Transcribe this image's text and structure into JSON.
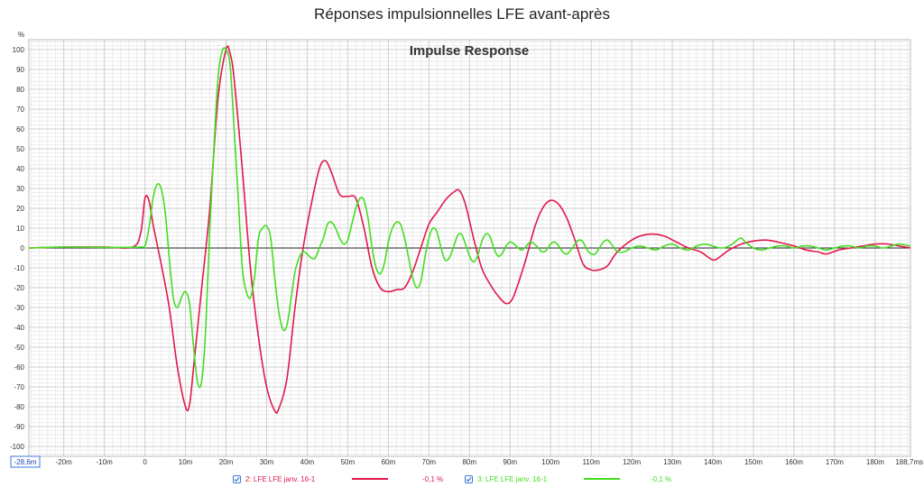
{
  "page": {
    "title": "Réponses impulsionnelles LFE avant-après"
  },
  "chart_data": {
    "type": "line",
    "title": "Impulse Response",
    "ylabel": "%",
    "xlim": [
      -28.6,
      188.7
    ],
    "ylim": [
      -105,
      105
    ],
    "grid": true,
    "x_ticks": [
      {
        "v": -28.6,
        "label": "-28,6m"
      },
      {
        "v": -20,
        "label": "-20m"
      },
      {
        "v": -10,
        "label": "-10m"
      },
      {
        "v": 0,
        "label": "0"
      },
      {
        "v": 10,
        "label": "10m"
      },
      {
        "v": 20,
        "label": "20m"
      },
      {
        "v": 30,
        "label": "30m"
      },
      {
        "v": 40,
        "label": "40m"
      },
      {
        "v": 50,
        "label": "50m"
      },
      {
        "v": 60,
        "label": "60m"
      },
      {
        "v": 70,
        "label": "70m"
      },
      {
        "v": 80,
        "label": "80m"
      },
      {
        "v": 90,
        "label": "90m"
      },
      {
        "v": 100,
        "label": "100m"
      },
      {
        "v": 110,
        "label": "110m"
      },
      {
        "v": 120,
        "label": "120m"
      },
      {
        "v": 130,
        "label": "130m"
      },
      {
        "v": 140,
        "label": "140m"
      },
      {
        "v": 150,
        "label": "150m"
      },
      {
        "v": 160,
        "label": "160m"
      },
      {
        "v": 170,
        "label": "170m"
      },
      {
        "v": 180,
        "label": "180m"
      },
      {
        "v": 188.7,
        "label": "188,7ms"
      }
    ],
    "y_ticks": [
      100,
      90,
      80,
      70,
      60,
      50,
      40,
      30,
      20,
      10,
      0,
      -10,
      -20,
      -30,
      -40,
      -50,
      -60,
      -70,
      -80,
      -90,
      -100
    ],
    "series": [
      {
        "name": "2: LFE LFE janv. 16-1",
        "value_label": "-0,1 %",
        "color": "#e0194b",
        "points": [
          [
            -28.6,
            0
          ],
          [
            -20,
            0.5
          ],
          [
            -10,
            0.5
          ],
          [
            -3,
            0.5
          ],
          [
            -1,
            8
          ],
          [
            0,
            25
          ],
          [
            1,
            24
          ],
          [
            2,
            12
          ],
          [
            4,
            -8
          ],
          [
            6,
            -30
          ],
          [
            8,
            -60
          ],
          [
            10,
            -80
          ],
          [
            11,
            -79
          ],
          [
            12,
            -60
          ],
          [
            14,
            -20
          ],
          [
            16,
            20
          ],
          [
            18,
            75
          ],
          [
            20,
            100
          ],
          [
            21,
            98
          ],
          [
            22,
            85
          ],
          [
            24,
            40
          ],
          [
            26,
            -10
          ],
          [
            28,
            -45
          ],
          [
            30,
            -70
          ],
          [
            32,
            -82
          ],
          [
            33,
            -81
          ],
          [
            35,
            -66
          ],
          [
            37,
            -30
          ],
          [
            39,
            0
          ],
          [
            41,
            22
          ],
          [
            43,
            40
          ],
          [
            44.5,
            44
          ],
          [
            46,
            38
          ],
          [
            48,
            27
          ],
          [
            50,
            26
          ],
          [
            52,
            25
          ],
          [
            54,
            10
          ],
          [
            56,
            -10
          ],
          [
            58,
            -20
          ],
          [
            60,
            -22
          ],
          [
            62,
            -21
          ],
          [
            64,
            -20
          ],
          [
            66,
            -12
          ],
          [
            68,
            0
          ],
          [
            70,
            12
          ],
          [
            72,
            18
          ],
          [
            74,
            24
          ],
          [
            76,
            28
          ],
          [
            77.5,
            29
          ],
          [
            79,
            22
          ],
          [
            81,
            5
          ],
          [
            83,
            -10
          ],
          [
            85,
            -18
          ],
          [
            87,
            -24
          ],
          [
            89,
            -28
          ],
          [
            90.5,
            -26
          ],
          [
            92,
            -18
          ],
          [
            94,
            -5
          ],
          [
            96,
            10
          ],
          [
            98,
            20
          ],
          [
            100,
            24
          ],
          [
            102,
            22
          ],
          [
            104,
            15
          ],
          [
            106,
            4
          ],
          [
            108,
            -8
          ],
          [
            110,
            -11
          ],
          [
            112,
            -11
          ],
          [
            114,
            -9
          ],
          [
            116,
            -3
          ],
          [
            118,
            1
          ],
          [
            120,
            4
          ],
          [
            122,
            6
          ],
          [
            125,
            7
          ],
          [
            128,
            6
          ],
          [
            131,
            3
          ],
          [
            134,
            0
          ],
          [
            137,
            -2
          ],
          [
            140,
            -6
          ],
          [
            142,
            -4
          ],
          [
            144,
            -1
          ],
          [
            147,
            2
          ],
          [
            150,
            3.5
          ],
          [
            153,
            4
          ],
          [
            156,
            3
          ],
          [
            160,
            1
          ],
          [
            163,
            -1
          ],
          [
            166,
            -2
          ],
          [
            168,
            -3
          ],
          [
            171,
            -1
          ],
          [
            174,
            0
          ],
          [
            177,
            1
          ],
          [
            180,
            2
          ],
          [
            183,
            2
          ],
          [
            186,
            1
          ],
          [
            188.7,
            0
          ]
        ]
      },
      {
        "name": "3: LFE LFE janv. 16-1",
        "value_label": "-0,1 %",
        "color": "#44dd22",
        "points": [
          [
            -28.6,
            0
          ],
          [
            -20,
            0.5
          ],
          [
            -10,
            0.3
          ],
          [
            -1,
            0.5
          ],
          [
            0,
            1
          ],
          [
            1,
            10
          ],
          [
            2,
            25
          ],
          [
            3,
            32
          ],
          [
            4,
            30
          ],
          [
            5,
            18
          ],
          [
            6,
            -5
          ],
          [
            7,
            -25
          ],
          [
            8,
            -30
          ],
          [
            9,
            -25
          ],
          [
            10,
            -22
          ],
          [
            11,
            -28
          ],
          [
            12,
            -50
          ],
          [
            13,
            -68
          ],
          [
            14,
            -67
          ],
          [
            15,
            -40
          ],
          [
            16,
            10
          ],
          [
            17,
            50
          ],
          [
            18,
            85
          ],
          [
            19,
            99
          ],
          [
            20,
            100
          ],
          [
            21,
            92
          ],
          [
            22,
            60
          ],
          [
            23,
            25
          ],
          [
            24,
            -10
          ],
          [
            25,
            -22
          ],
          [
            26,
            -25
          ],
          [
            27,
            -15
          ],
          [
            28,
            5
          ],
          [
            29,
            10
          ],
          [
            30,
            11
          ],
          [
            31,
            5
          ],
          [
            32,
            -15
          ],
          [
            33,
            -32
          ],
          [
            34,
            -41
          ],
          [
            35,
            -39
          ],
          [
            36,
            -26
          ],
          [
            37,
            -12
          ],
          [
            38,
            -5
          ],
          [
            39,
            -2
          ],
          [
            40,
            -3
          ],
          [
            41,
            -5
          ],
          [
            42,
            -5
          ],
          [
            43,
            0
          ],
          [
            44,
            5
          ],
          [
            45,
            12
          ],
          [
            46,
            13
          ],
          [
            47,
            10
          ],
          [
            48,
            5
          ],
          [
            49,
            2
          ],
          [
            50,
            4
          ],
          [
            51,
            12
          ],
          [
            52,
            20
          ],
          [
            53,
            25
          ],
          [
            54,
            24
          ],
          [
            55,
            15
          ],
          [
            56,
            0
          ],
          [
            57,
            -10
          ],
          [
            58,
            -13
          ],
          [
            59,
            -8
          ],
          [
            60,
            3
          ],
          [
            61,
            10
          ],
          [
            62,
            13
          ],
          [
            63,
            12
          ],
          [
            64,
            5
          ],
          [
            65,
            -5
          ],
          [
            66,
            -15
          ],
          [
            67,
            -20
          ],
          [
            68,
            -17
          ],
          [
            69,
            -5
          ],
          [
            70,
            5
          ],
          [
            71,
            10
          ],
          [
            72,
            8
          ],
          [
            73,
            0
          ],
          [
            74,
            -6
          ],
          [
            75,
            -5
          ],
          [
            76,
            0
          ],
          [
            77,
            6
          ],
          [
            78,
            7
          ],
          [
            79,
            2
          ],
          [
            80,
            -4
          ],
          [
            81,
            -7
          ],
          [
            82,
            -4
          ],
          [
            83,
            3
          ],
          [
            84,
            7
          ],
          [
            85,
            6
          ],
          [
            86,
            0
          ],
          [
            87,
            -4
          ],
          [
            88,
            -3
          ],
          [
            89,
            1
          ],
          [
            90,
            3
          ],
          [
            91,
            2
          ],
          [
            92,
            0
          ],
          [
            93,
            -1
          ],
          [
            94,
            1
          ],
          [
            95,
            3
          ],
          [
            96,
            2
          ],
          [
            97,
            0
          ],
          [
            98,
            -2
          ],
          [
            99,
            -1
          ],
          [
            100,
            2
          ],
          [
            101,
            3
          ],
          [
            102,
            1
          ],
          [
            103,
            -2
          ],
          [
            104,
            -3
          ],
          [
            105,
            -1
          ],
          [
            106,
            2
          ],
          [
            107,
            4
          ],
          [
            108,
            3
          ],
          [
            109,
            -1
          ],
          [
            110,
            -3
          ],
          [
            111,
            -3
          ],
          [
            112,
            0
          ],
          [
            113,
            3
          ],
          [
            114,
            4
          ],
          [
            115,
            2
          ],
          [
            116,
            -1
          ],
          [
            117,
            -2
          ],
          [
            118,
            -2
          ],
          [
            120,
            0
          ],
          [
            122,
            1
          ],
          [
            124,
            0
          ],
          [
            126,
            -1
          ],
          [
            128,
            1
          ],
          [
            130,
            2
          ],
          [
            132,
            0
          ],
          [
            134,
            -1
          ],
          [
            136,
            1
          ],
          [
            138,
            2
          ],
          [
            140,
            1
          ],
          [
            142,
            0
          ],
          [
            144,
            1
          ],
          [
            146,
            4
          ],
          [
            147,
            5
          ],
          [
            148,
            3
          ],
          [
            150,
            0
          ],
          [
            152,
            -1
          ],
          [
            154,
            0
          ],
          [
            156,
            1
          ],
          [
            158,
            1
          ],
          [
            160,
            0
          ],
          [
            162,
            1
          ],
          [
            164,
            1
          ],
          [
            166,
            0
          ],
          [
            168,
            -1
          ],
          [
            170,
            0
          ],
          [
            172,
            1
          ],
          [
            174,
            1
          ],
          [
            176,
            0
          ],
          [
            178,
            1
          ],
          [
            180,
            1
          ],
          [
            182,
            0
          ],
          [
            184,
            1
          ],
          [
            186,
            2
          ],
          [
            188.7,
            1
          ]
        ]
      }
    ]
  }
}
